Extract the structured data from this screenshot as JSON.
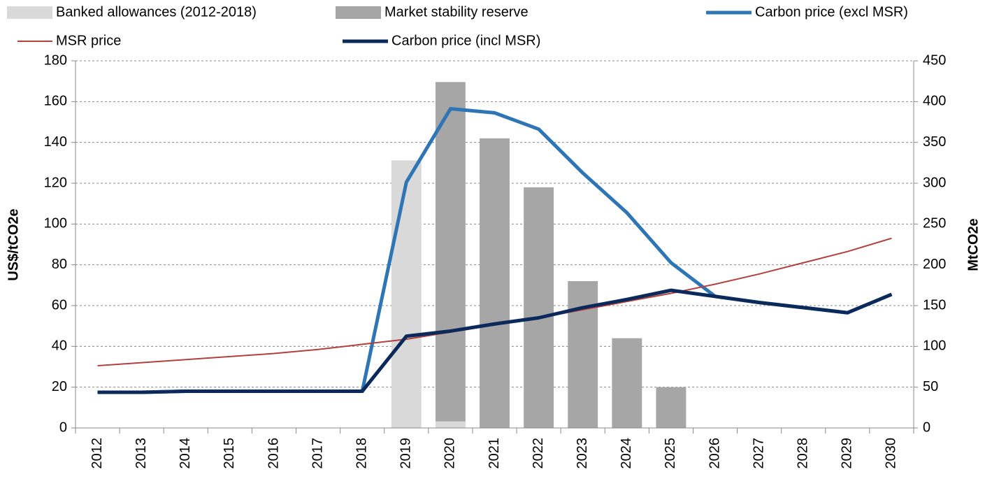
{
  "chart_data": {
    "type": "combo",
    "categories": [
      "2012",
      "2013",
      "2014",
      "2015",
      "2016",
      "2017",
      "2018",
      "2019",
      "2020",
      "2021",
      "2022",
      "2023",
      "2024",
      "2025",
      "2026",
      "2027",
      "2028",
      "2029",
      "2030"
    ],
    "ylabel": "US$/tCO2e",
    "y2label": "MtCO2e",
    "ylim": [
      0,
      180
    ],
    "yticks": [
      0,
      20,
      40,
      60,
      80,
      100,
      120,
      140,
      160,
      180
    ],
    "y2lim": [
      0,
      450
    ],
    "y2ticks": [
      0,
      50,
      100,
      150,
      200,
      250,
      300,
      350,
      400,
      450
    ],
    "grid": true,
    "series": [
      {
        "name": "Banked allowances (2012-2018)",
        "type": "bar",
        "axis": "y2",
        "color": "#d9d9d9",
        "values": [
          0,
          0,
          0,
          0,
          0,
          0,
          0,
          328,
          8,
          0,
          0,
          0,
          0,
          0,
          0,
          0,
          0,
          0,
          0
        ]
      },
      {
        "name": "Market stability reserve",
        "type": "bar",
        "axis": "y2",
        "color": "#a6a6a6",
        "values": [
          0,
          0,
          0,
          0,
          0,
          0,
          0,
          0,
          416,
          355,
          295,
          180,
          110,
          50,
          0,
          0,
          0,
          0,
          0
        ]
      },
      {
        "name": "Carbon price (excl MSR)",
        "type": "line",
        "color": "#2e75b6",
        "values": [
          17.5,
          17.5,
          18,
          18,
          18,
          18,
          18,
          120.5,
          156.5,
          154.5,
          146.5,
          125,
          105.5,
          81,
          64.5,
          61.5,
          59,
          56.5,
          65.5
        ]
      },
      {
        "name": "MSR price",
        "type": "line",
        "color": "#b0413e",
        "values": [
          30.5,
          32,
          33.5,
          35,
          36.5,
          38.5,
          41,
          43.5,
          47,
          50.5,
          54,
          58,
          62,
          66,
          70.5,
          75.5,
          81,
          86.5,
          93
        ]
      },
      {
        "name": "Carbon price (incl MSR)",
        "type": "line",
        "color": "#0b2a5b",
        "values": [
          17.5,
          17.5,
          18,
          18,
          18,
          18,
          18,
          45,
          47.5,
          51,
          54,
          59,
          63,
          67.5,
          64.5,
          61.5,
          59,
          56.5,
          65.5
        ]
      }
    ]
  }
}
